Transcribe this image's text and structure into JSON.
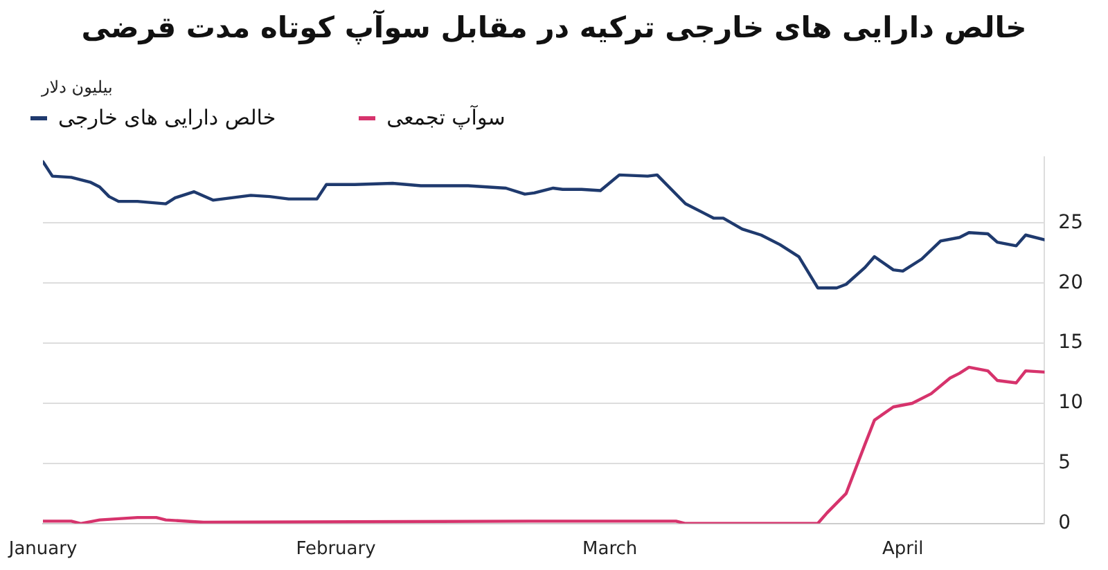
{
  "chart_data": {
    "type": "line",
    "title": "خالص دارایی های خارجی ترکیه در مقابل سوآپ کوتاه مدت قرضی",
    "ylabel": "بیلیون دلار",
    "x": [
      "--01-01",
      "--01-02",
      "--01-04",
      "--01-06",
      "--01-07",
      "--01-08",
      "--01-09",
      "--01-11",
      "--01-14",
      "--01-15",
      "--01-17",
      "--01-19",
      "--01-21",
      "--01-23",
      "--01-25",
      "--01-27",
      "--01-30",
      "--01-31",
      "--02-03",
      "--02-07",
      "--02-10",
      "--02-15",
      "--02-19",
      "--02-21",
      "--02-22",
      "--02-24",
      "--02-25",
      "--02-27",
      "--02-29",
      "--03-02",
      "--03-05",
      "--03-06",
      "--03-09",
      "--03-12",
      "--03-13",
      "--03-15",
      "--03-17",
      "--03-19",
      "--03-21",
      "--03-23",
      "--03-25",
      "--03-26",
      "--03-28",
      "--03-29",
      "--03-31",
      "--04-01",
      "--04-03",
      "--04-05",
      "--04-07",
      "--04-08",
      "--04-10",
      "--04-11",
      "--04-13",
      "--04-14",
      "--04-16"
    ],
    "series": [
      {
        "name": "خالص دارایی های خارجی",
        "color": "#1f3a6e",
        "values": [
          30.1,
          28.9,
          28.8,
          28.4,
          28.0,
          27.2,
          26.8,
          26.8,
          26.6,
          27.1,
          27.6,
          26.9,
          27.1,
          27.3,
          27.2,
          27.0,
          27.0,
          28.2,
          28.2,
          28.3,
          28.1,
          28.1,
          27.9,
          27.4,
          27.5,
          27.9,
          27.8,
          27.8,
          27.7,
          29.0,
          28.9,
          29.0,
          26.6,
          25.4,
          25.4,
          24.5,
          24.0,
          23.2,
          22.2,
          19.6,
          19.6,
          19.9,
          21.3,
          22.2,
          21.1,
          21.0,
          22.0,
          23.5,
          23.8,
          24.2,
          24.1,
          23.4,
          23.1,
          24.0,
          23.6
        ]
      },
      {
        "name": "سوآپ تجمعی",
        "color": "#d6336c",
        "x": [
          "--01-01",
          "--01-04",
          "--01-05",
          "--01-07",
          "--01-09",
          "--01-11",
          "--01-13",
          "--01-14",
          "--01-18",
          "--02-22",
          "--02-25",
          "--03-08",
          "--03-09",
          "--03-23",
          "--03-24",
          "--03-26",
          "--03-28",
          "--03-29",
          "--03-31",
          "--04-02",
          "--04-04",
          "--04-06",
          "--04-07",
          "--04-08",
          "--04-10",
          "--04-11",
          "--04-13",
          "--04-14",
          "--04-16"
        ],
        "values": [
          0.2,
          0.2,
          0.0,
          0.3,
          0.4,
          0.5,
          0.5,
          0.3,
          0.1,
          0.2,
          0.2,
          0.2,
          0.0,
          0.0,
          0.9,
          2.5,
          6.6,
          8.6,
          9.7,
          10.0,
          10.8,
          12.1,
          12.5,
          13.0,
          12.7,
          11.9,
          11.7,
          12.7,
          12.6
        ]
      }
    ],
    "xlim": [
      "--01-01",
      "--04-16"
    ],
    "xticks": [
      {
        "value": "--01-01",
        "label": "January"
      },
      {
        "value": "--02-01",
        "label": "February"
      },
      {
        "value": "--03-01",
        "label": "March"
      },
      {
        "value": "--04-01",
        "label": "April"
      }
    ],
    "ylim": [
      0,
      30.5
    ],
    "yticks": [
      0,
      5,
      10,
      15,
      20,
      25
    ],
    "grid": "y",
    "legend": "top left",
    "marker": "none",
    "line_style": "solid"
  }
}
